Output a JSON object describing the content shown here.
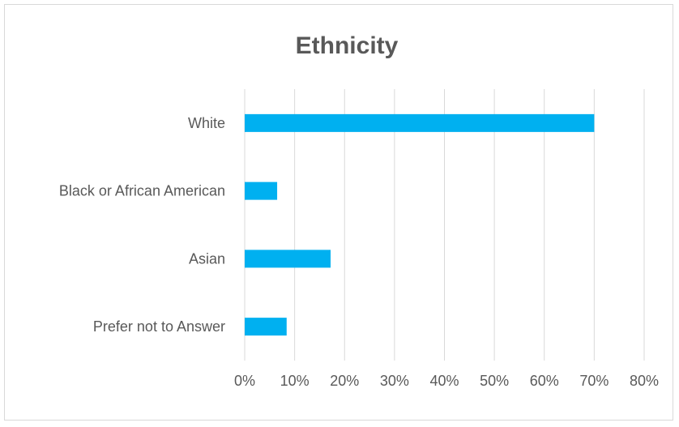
{
  "chart_data": {
    "type": "bar",
    "orientation": "horizontal",
    "title": "Ethnicity",
    "categories": [
      "White",
      "Black or African American",
      "Asian",
      "Prefer not to Answer"
    ],
    "series": [
      {
        "values": [
          70,
          6.5,
          17.2,
          8.4
        ]
      }
    ],
    "xlim": [
      0,
      80
    ],
    "xticks": [
      0,
      10,
      20,
      30,
      40,
      50,
      60,
      70,
      80
    ],
    "tick_suffix": "%",
    "xlabel": "",
    "ylabel": "",
    "grid": true,
    "legend": "none",
    "bar_color": "#00b0f0"
  }
}
